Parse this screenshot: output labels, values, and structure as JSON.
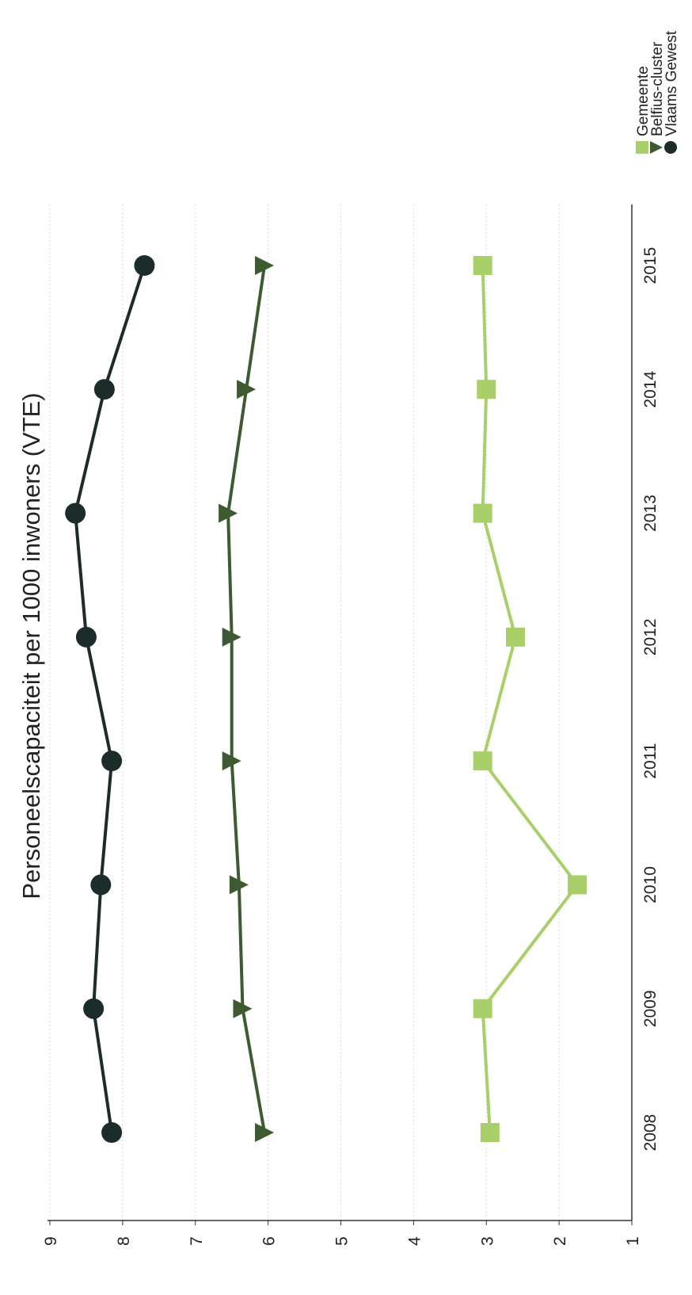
{
  "chart_data": {
    "type": "line",
    "title": "Personeelscapaciteit per 1000 inwoners (VTE)",
    "xlabel": "",
    "ylabel": "",
    "categories": [
      "2008",
      "2009",
      "2010",
      "2011",
      "2012",
      "2013",
      "2014",
      "2015"
    ],
    "yticks": [
      "1",
      "2",
      "3",
      "4",
      "5",
      "6",
      "7",
      "8",
      "9"
    ],
    "ylim": [
      1,
      9
    ],
    "grid": true,
    "legend_position": "top-right",
    "series": [
      {
        "name": "Gemeente",
        "marker": "square",
        "color": "#a9cf6a",
        "values": [
          2.95,
          3.05,
          1.75,
          3.05,
          2.6,
          3.05,
          3.0,
          3.05
        ]
      },
      {
        "name": "Belfius-cluster",
        "marker": "triangle",
        "color": "#3e5a31",
        "values": [
          6.05,
          6.35,
          6.4,
          6.5,
          6.5,
          6.55,
          6.3,
          6.05
        ]
      },
      {
        "name": "Vlaams Gewest",
        "marker": "circle",
        "color": "#1c2c2a",
        "values": [
          8.15,
          8.4,
          8.3,
          8.15,
          8.5,
          8.65,
          8.25,
          7.7
        ]
      }
    ]
  }
}
